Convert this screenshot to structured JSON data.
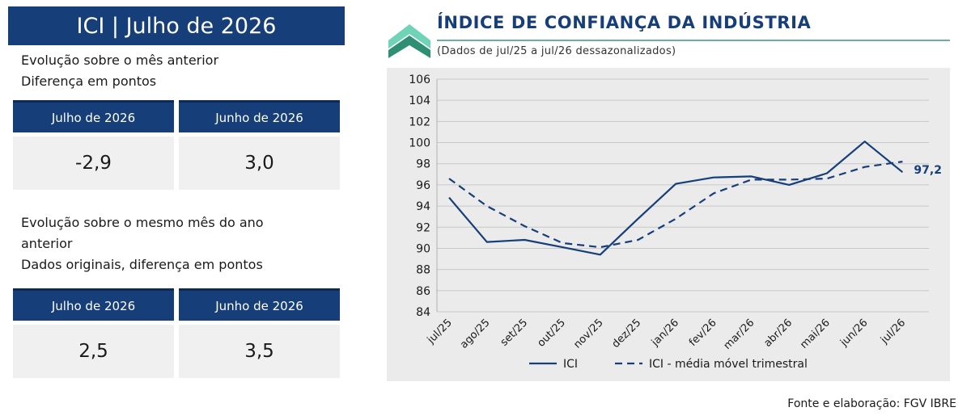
{
  "panel": {
    "title": "ICI | Julho de 2026",
    "section1": {
      "lines": [
        "Evolução sobre o mês anterior",
        "Diferença em pontos"
      ],
      "columns": [
        {
          "header": "Julho de 2026",
          "value": "-2,9"
        },
        {
          "header": "Junho de 2026",
          "value": "3,0"
        }
      ]
    },
    "section2": {
      "lines": [
        "Evolução sobre o mesmo mês do ano",
        "anterior",
        "Dados originais, diferença em pontos"
      ],
      "columns": [
        {
          "header": "Julho de 2026",
          "value": "2,5"
        },
        {
          "header": "Junho de 2026",
          "value": "3,5"
        }
      ]
    }
  },
  "colors": {
    "navy": "#163e79",
    "teal_light": "#6fd3b7",
    "teal_dark": "#2f8f75",
    "plot_bg": "#ebebeb",
    "grid": "#c8c8c8",
    "series": "#163e79"
  },
  "source": "Fonte e elaboração: FGV IBRE",
  "chart_data": {
    "type": "line",
    "title": "ÍNDICE DE CONFIANÇA DA INDÚSTRIA",
    "subtitle": "(Dados de jul/25 a jul/26 dessazonalizados)",
    "categories": [
      "jul/25",
      "ago/25",
      "set/25",
      "out/25",
      "nov/25",
      "dez/25",
      "jan/26",
      "fev/26",
      "mar/26",
      "abr/26",
      "mai/26",
      "jun/26",
      "jul/26"
    ],
    "ylim": [
      84,
      106
    ],
    "yticks": [
      84,
      86,
      88,
      90,
      92,
      94,
      96,
      98,
      100,
      102,
      104,
      106
    ],
    "grid": true,
    "legend_position": "bottom",
    "series": [
      {
        "name": "ICI",
        "style": "solid",
        "values": [
          94.8,
          90.6,
          90.8,
          90.1,
          89.4,
          92.8,
          96.1,
          96.7,
          96.8,
          96.0,
          97.1,
          100.1,
          97.2
        ]
      },
      {
        "name": "ICI - média móvel trimestral",
        "style": "dashed",
        "values": [
          96.6,
          94.0,
          92.1,
          90.5,
          90.1,
          90.8,
          92.8,
          95.2,
          96.5,
          96.5,
          96.6,
          97.7,
          98.2
        ]
      }
    ],
    "annotation": {
      "label": "97,2",
      "category": "jul/26",
      "value": 97.2
    }
  }
}
